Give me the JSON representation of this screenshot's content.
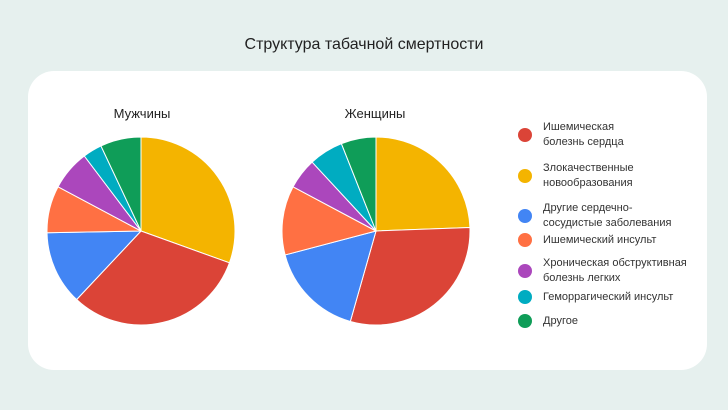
{
  "title": "Структура табачной смертности",
  "legend": [
    {
      "label": "Ишемическая\nболезнь сердца",
      "color": "#db4437"
    },
    {
      "label": "Злокачественные\nновообразования",
      "color": "#f4b400"
    },
    {
      "label": "Другие сердечно-\nсосудистые заболевания",
      "color": "#4285f4"
    },
    {
      "label": "Ишемический инсульт",
      "color": "#ff7043"
    },
    {
      "label": "Хроническая обструктивная\nболезнь легких",
      "color": "#ab47bc"
    },
    {
      "label": "Геморрагический инсульт",
      "color": "#00acc1"
    },
    {
      "label": "Другое",
      "color": "#0f9d58"
    }
  ],
  "chart_data": [
    {
      "type": "pie",
      "title": "Мужчины",
      "categories": [
        "Злокачественные новообразования",
        "Ишемическая болезнь сердца",
        "Другие сердечно-сосудистые заболевания",
        "Ишемический инсульт",
        "Хроническая обструктивная болезнь легких",
        "Геморрагический инсульт",
        "Другое"
      ],
      "values": [
        30.5,
        31.5,
        12.7,
        8.1,
        6.9,
        3.3,
        7.0
      ]
    },
    {
      "type": "pie",
      "title": "Женщины",
      "categories": [
        "Злокачественные новообразования",
        "Ишемическая болезнь сердца",
        "Другие сердечно-сосудистые заболевания",
        "Ишемический инсульт",
        "Хроническая обструктивная болезнь легких",
        "Геморрагический инсульт",
        "Другое"
      ],
      "values": [
        24.4,
        30.0,
        16.5,
        11.9,
        5.3,
        5.9,
        6.0
      ]
    }
  ]
}
